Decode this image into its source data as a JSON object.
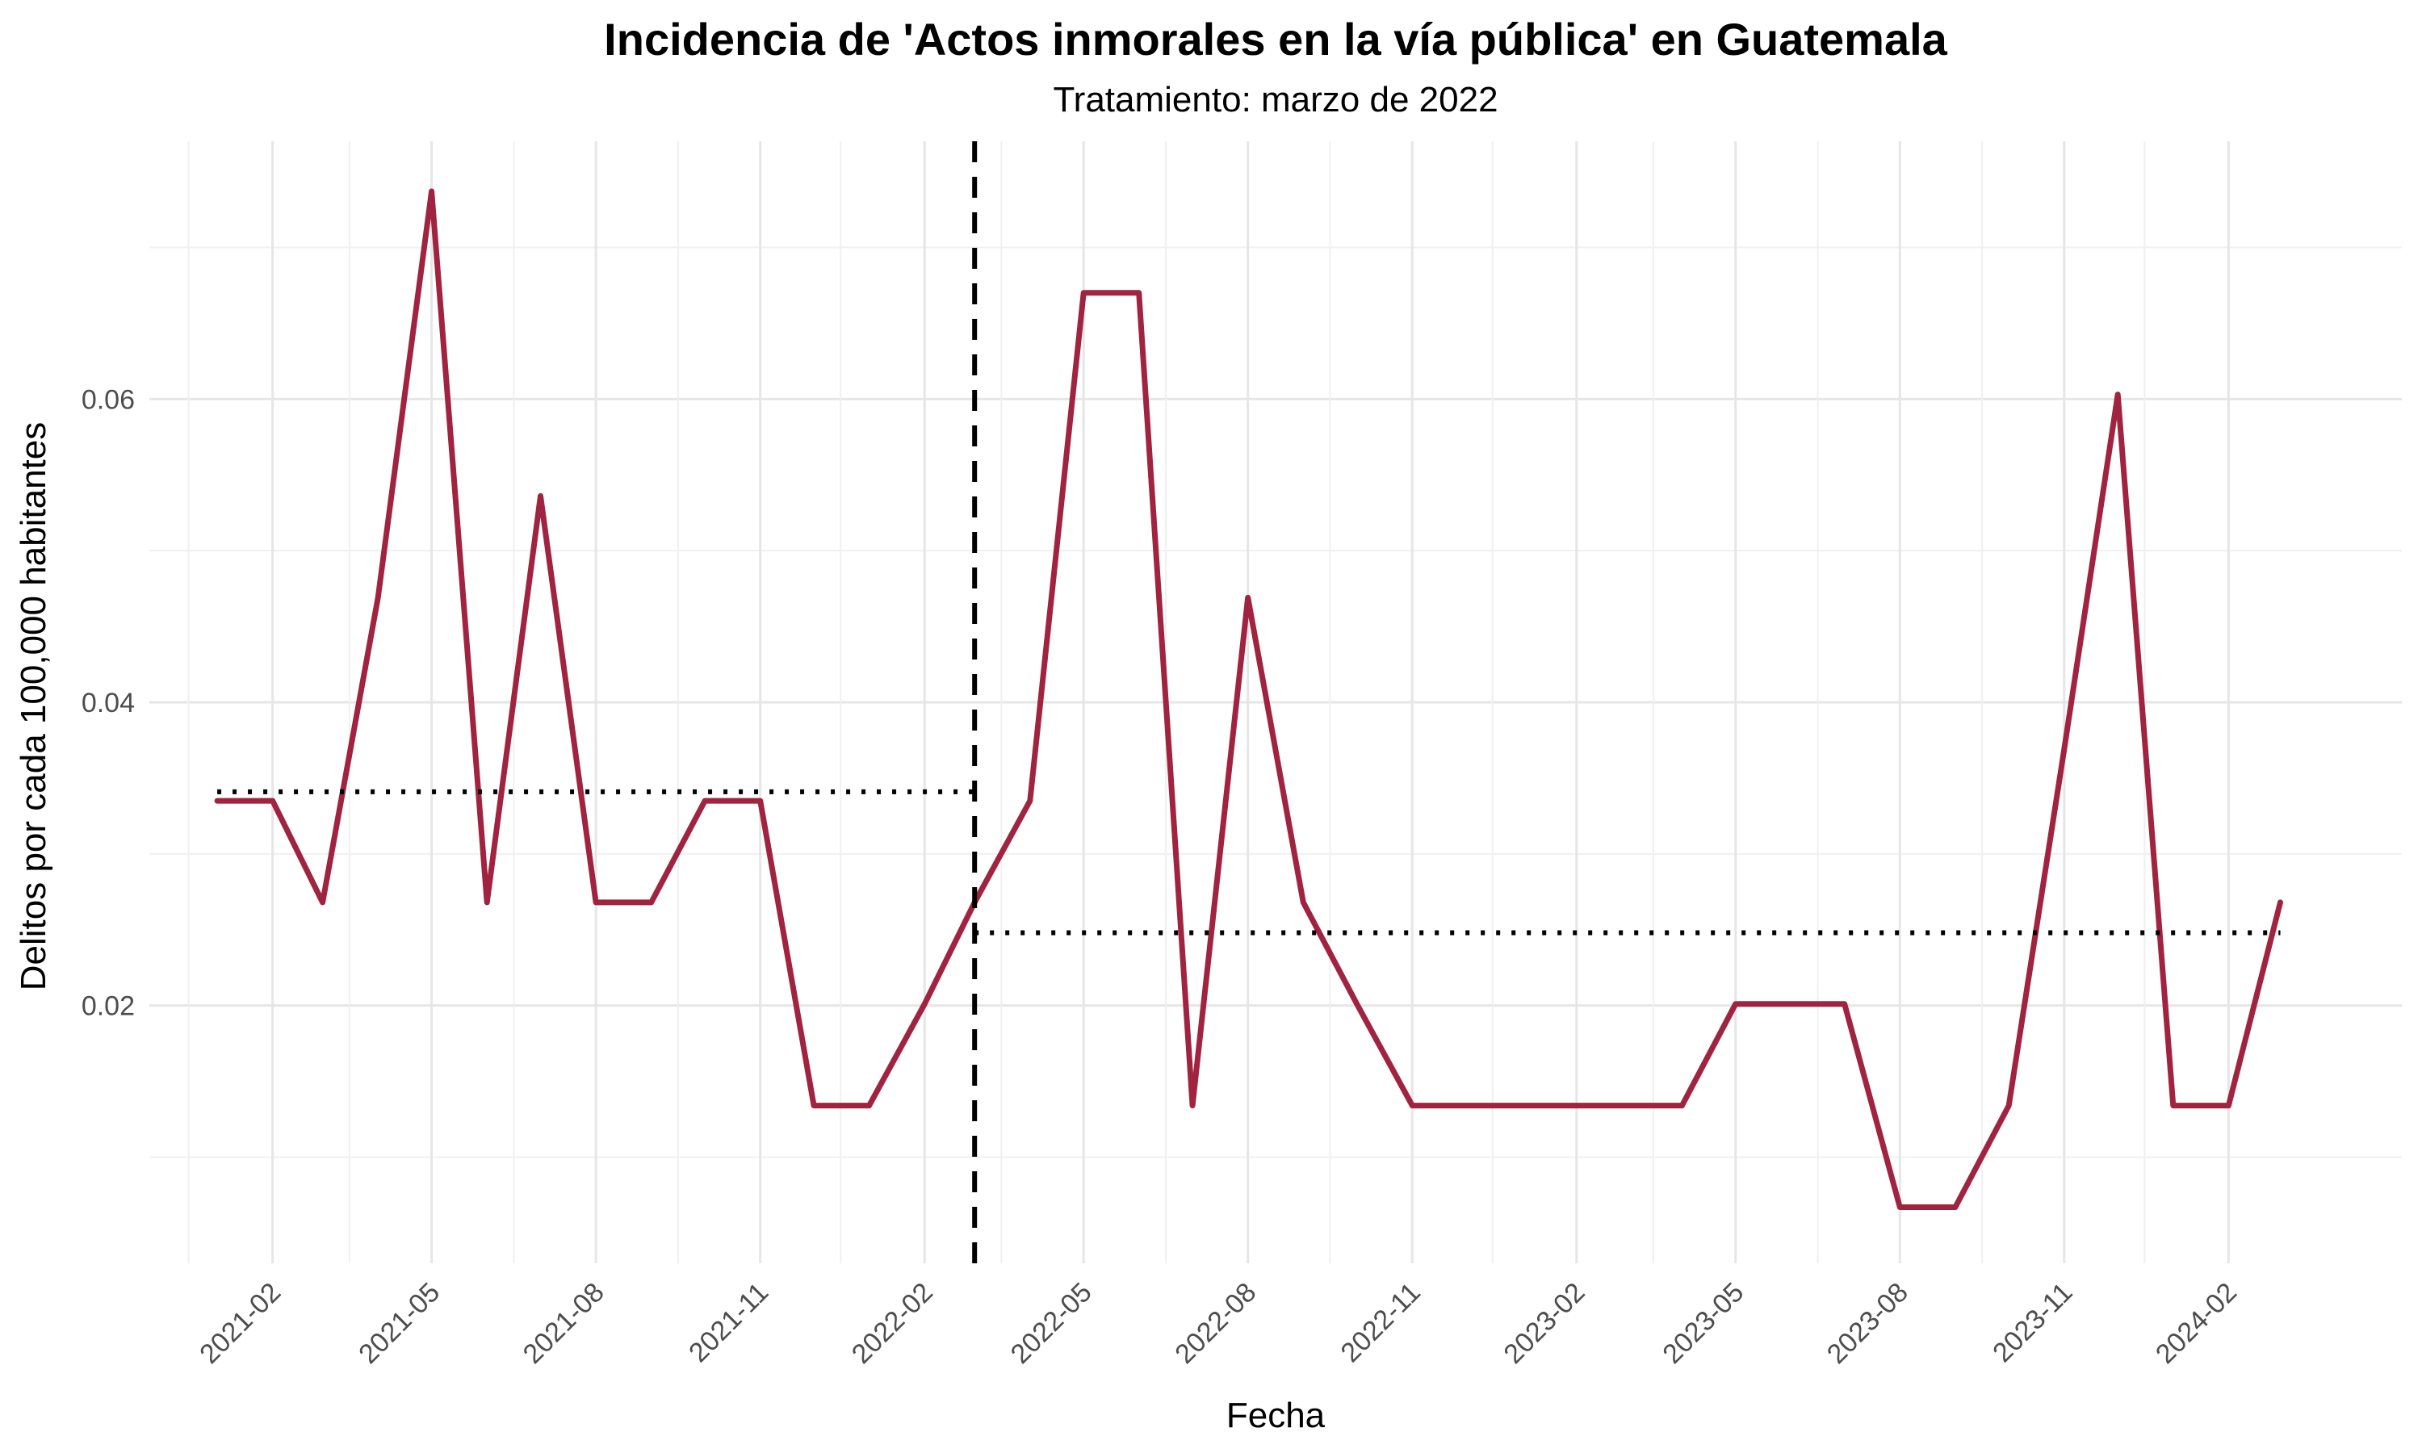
{
  "chart_data": {
    "type": "line",
    "title": "Incidencia de 'Actos inmorales en la vía pública' en Guatemala",
    "subtitle": "Tratamiento: marzo de 2022",
    "xlabel": "Fecha",
    "ylabel": "Delitos por cada 100,000 habitantes",
    "x_tick_labels": [
      "2021-02",
      "2021-05",
      "2021-08",
      "2021-11",
      "2022-02",
      "2022-05",
      "2022-08",
      "2022-11",
      "2023-02",
      "2023-05",
      "2023-08",
      "2023-11",
      "2024-02"
    ],
    "y_ticks": [
      0.02,
      0.04,
      0.06
    ],
    "y_tick_labels": [
      "0.02",
      "0.04",
      "0.06"
    ],
    "ylim": [
      0.003,
      0.077
    ],
    "xlim": [
      "2020-11-24",
      "2024-05-08"
    ],
    "grid": true,
    "series": [
      {
        "color": "#A0243F",
        "x": [
          "2021-01-01",
          "2021-02-01",
          "2021-03-01",
          "2021-04-01",
          "2021-05-01",
          "2021-06-01",
          "2021-07-01",
          "2021-08-01",
          "2021-09-01",
          "2021-10-01",
          "2021-11-01",
          "2021-12-01",
          "2022-01-01",
          "2022-02-01",
          "2022-03-01",
          "2022-04-01",
          "2022-05-01",
          "2022-06-01",
          "2022-07-01",
          "2022-08-01",
          "2022-09-01",
          "2022-10-01",
          "2022-11-01",
          "2022-12-01",
          "2023-01-01",
          "2023-02-01",
          "2023-03-01",
          "2023-04-01",
          "2023-05-01",
          "2023-06-01",
          "2023-07-01",
          "2023-08-01",
          "2023-09-01",
          "2023-10-01",
          "2023-11-01",
          "2023-12-01",
          "2024-01-01",
          "2024-02-01",
          "2024-03-01"
        ],
        "values": [
          0.0335,
          0.0335,
          0.0268,
          0.0469,
          0.0737,
          0.0268,
          0.0536,
          0.0268,
          0.0268,
          0.0335,
          0.0335,
          0.0134,
          0.0134,
          0.0201,
          0.0268,
          0.0335,
          0.067,
          0.067,
          0.0134,
          0.0469,
          0.0268,
          0.0201,
          0.0134,
          0.0134,
          0.0134,
          0.0134,
          0.0134,
          0.0134,
          0.0201,
          0.0201,
          0.0201,
          0.0067,
          0.0067,
          0.0134,
          0.0369,
          0.0603,
          0.0134,
          0.0134,
          0.0268
        ]
      }
    ],
    "reference_lines": [
      {
        "kind": "vertical",
        "style": "dashed",
        "color": "#000000",
        "x": "2022-03-01"
      },
      {
        "kind": "horizontal-segment",
        "style": "dotted",
        "color": "#000000",
        "y": 0.0341,
        "x_start": "2021-01-01",
        "x_end": "2022-03-01"
      },
      {
        "kind": "horizontal-segment",
        "style": "dotted",
        "color": "#000000",
        "y": 0.0248,
        "x_start": "2022-03-01",
        "x_end": "2024-03-01"
      }
    ]
  }
}
